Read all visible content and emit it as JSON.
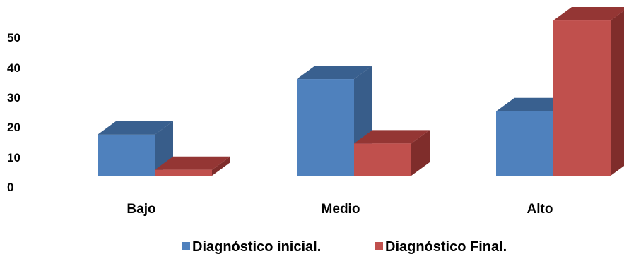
{
  "chart_data": {
    "type": "bar",
    "style": "3d-clustered-column",
    "categories": [
      "Bajo",
      "Medio",
      "Alto"
    ],
    "series": [
      {
        "name": "Diagnóstico inicial.",
        "values": [
          14,
          33,
          22
        ],
        "color": "#4f81bd",
        "side_color": "#385d8a",
        "top_color": "#39608f"
      },
      {
        "name": "Diagnóstico Final.",
        "values": [
          2,
          11,
          53
        ],
        "color": "#c0504d",
        "side_color": "#7f2d2b",
        "top_color": "#943634"
      }
    ],
    "y_ticks": [
      "0",
      "10",
      "20",
      "30",
      "40",
      "50"
    ],
    "ylim": [
      0,
      55
    ],
    "grid": false,
    "legend_position": "bottom"
  }
}
